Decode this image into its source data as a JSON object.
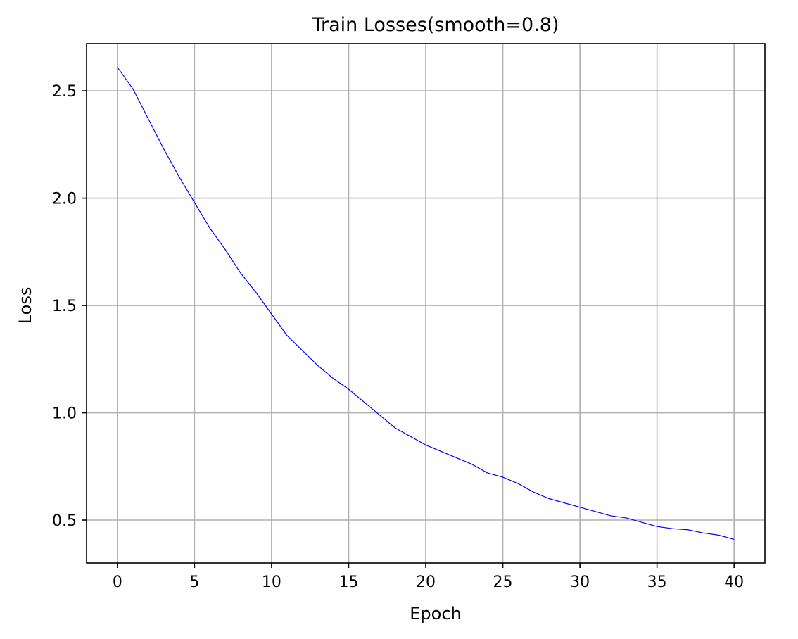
{
  "chart_data": {
    "type": "line",
    "title": "Train Losses(smooth=0.8)",
    "xlabel": "Epoch",
    "ylabel": "Loss",
    "xlim": [
      -2,
      42
    ],
    "ylim": [
      0.3,
      2.72
    ],
    "x_ticks": [
      0,
      5,
      10,
      15,
      20,
      25,
      30,
      35,
      40
    ],
    "x_tick_labels": [
      "0",
      "5",
      "10",
      "15",
      "20",
      "25",
      "30",
      "35",
      "40"
    ],
    "y_ticks": [
      0.5,
      1.0,
      1.5,
      2.0,
      2.5
    ],
    "y_tick_labels": [
      "0.5",
      "1.0",
      "1.5",
      "2.0",
      "2.5"
    ],
    "grid": true,
    "series": [
      {
        "color": "#0000ff",
        "x": [
          0,
          1,
          2,
          3,
          4,
          5,
          6,
          7,
          8,
          9,
          10,
          11,
          12,
          13,
          14,
          15,
          16,
          17,
          18,
          19,
          20,
          21,
          22,
          23,
          24,
          25,
          26,
          27,
          28,
          29,
          30,
          31,
          32,
          33,
          34,
          35,
          36,
          37,
          38,
          39,
          40
        ],
        "values": [
          2.61,
          2.51,
          2.37,
          2.23,
          2.1,
          1.98,
          1.86,
          1.76,
          1.65,
          1.56,
          1.46,
          1.36,
          1.29,
          1.22,
          1.16,
          1.11,
          1.05,
          0.99,
          0.93,
          0.89,
          0.85,
          0.82,
          0.79,
          0.76,
          0.72,
          0.7,
          0.67,
          0.63,
          0.6,
          0.58,
          0.56,
          0.54,
          0.52,
          0.51,
          0.49,
          0.47,
          0.46,
          0.455,
          0.44,
          0.43,
          0.41
        ]
      }
    ]
  }
}
